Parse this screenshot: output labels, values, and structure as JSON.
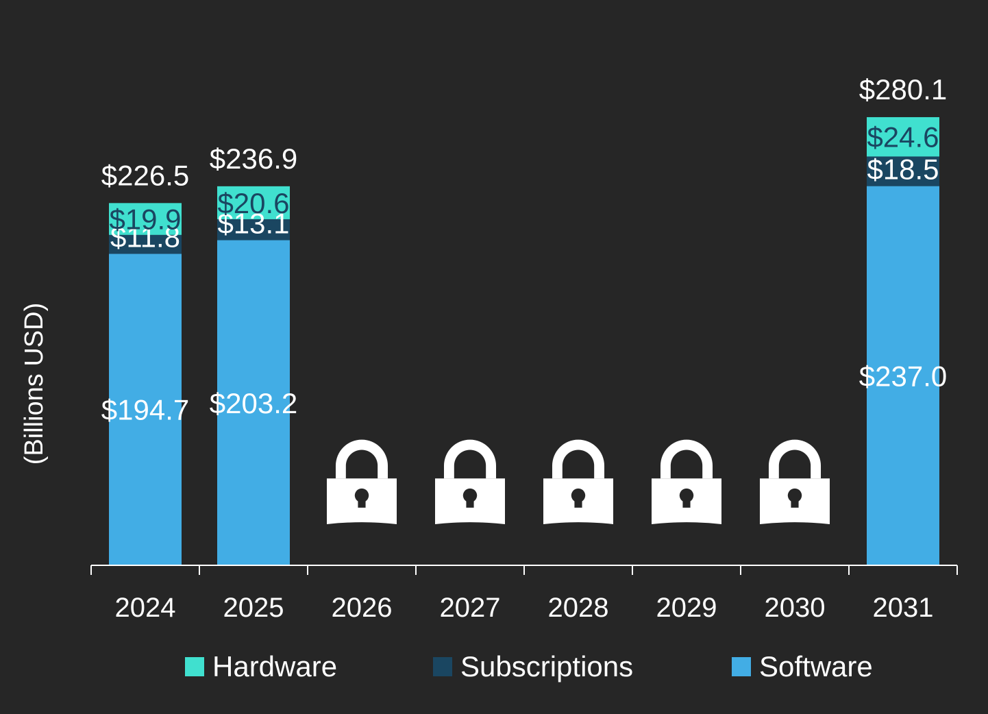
{
  "chart_data": {
    "type": "bar",
    "stacked": true,
    "title": "",
    "xlabel": "",
    "ylabel": "(Billions USD)",
    "ylim": [
      0,
      300
    ],
    "grid": false,
    "legend_position": "bottom",
    "categories": [
      "2024",
      "2025",
      "2026",
      "2027",
      "2028",
      "2029",
      "2030",
      "2031"
    ],
    "locked_categories": [
      "2026",
      "2027",
      "2028",
      "2029",
      "2030"
    ],
    "series": [
      {
        "name": "Software",
        "color": "#42ADE5",
        "values": [
          194.7,
          203.2,
          null,
          null,
          null,
          null,
          null,
          237.0
        ],
        "labels": [
          "$194.7",
          "$203.2",
          null,
          null,
          null,
          null,
          null,
          "$237.0"
        ]
      },
      {
        "name": "Subscriptions",
        "color": "#1A4661",
        "values": [
          11.8,
          13.1,
          null,
          null,
          null,
          null,
          null,
          18.5
        ],
        "labels": [
          "$11.8",
          "$13.1",
          null,
          null,
          null,
          null,
          null,
          "$18.5"
        ]
      },
      {
        "name": "Hardware",
        "color": "#40E0CF",
        "values": [
          19.9,
          20.6,
          null,
          null,
          null,
          null,
          null,
          24.6
        ],
        "labels": [
          "$19.9",
          "$20.6",
          null,
          null,
          null,
          null,
          null,
          "$24.6"
        ]
      }
    ],
    "totals": [
      226.5,
      236.9,
      null,
      null,
      null,
      null,
      null,
      280.1
    ],
    "total_labels": [
      "$226.5",
      "$236.9",
      null,
      null,
      null,
      null,
      null,
      "$280.1"
    ],
    "legend": [
      {
        "name": "Hardware",
        "color": "#40E0CF"
      },
      {
        "name": "Subscriptions",
        "color": "#1A4661"
      },
      {
        "name": "Software",
        "color": "#42ADE5"
      }
    ]
  }
}
